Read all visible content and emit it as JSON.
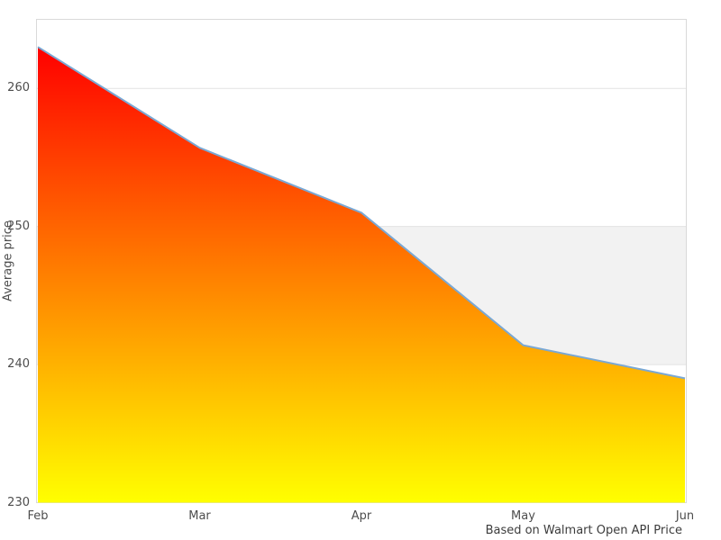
{
  "chart_data": {
    "type": "area",
    "title": "",
    "categories": [
      "Feb",
      "Mar",
      "Apr",
      "May",
      "Jun"
    ],
    "values": [
      263,
      255.7,
      251,
      241.4,
      239
    ],
    "series_name": "Average price",
    "xlabel": "",
    "ylabel": "Average price",
    "caption": "Based on Walmart Open API Price",
    "ylim": [
      230,
      265
    ],
    "yticks": [
      230,
      240,
      250,
      260
    ],
    "grid": "horizontal gridlines at y ticks, no vertical gridlines",
    "legend": "none",
    "region_band": {
      "from": 240,
      "to": 250
    },
    "colors": {
      "gradient_top": "#ff0000",
      "gradient_bottom": "#ffff00",
      "line": "#7aa8d4",
      "band": "#f2f2f2",
      "grid": "#e2e2e2",
      "border": "#d9d9d9",
      "tick_text": "#4d4d4d",
      "caption_text": "#3c3c3c",
      "background": "#ffffff"
    }
  }
}
